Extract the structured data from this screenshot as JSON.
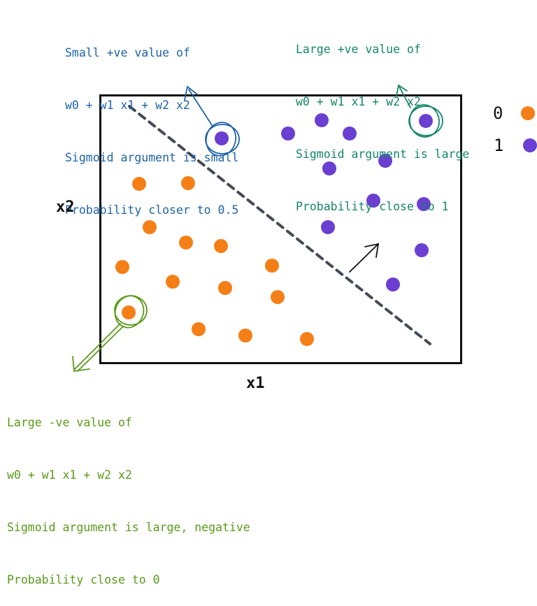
{
  "colors": {
    "class0": "#f57f17",
    "class1": "#6a3fd1",
    "blue_note": "#1e63a6",
    "teal_note": "#16866a",
    "green_note": "#5a9a1a",
    "frame": "#111111",
    "boundary": "#454b54"
  },
  "axes": {
    "x_label": "x1",
    "y_label": "x2"
  },
  "legend": [
    {
      "label": "0",
      "class": "class0"
    },
    {
      "label": "1",
      "class": "class1"
    }
  ],
  "notes": {
    "top_left": {
      "lines": [
        "Small +ve value of",
        "w0 + w1 x1 + w2 x2",
        "Sigmoid argument is small",
        "Probability closer to 0.5"
      ]
    },
    "top_right": {
      "lines": [
        "Large +ve value of",
        "w0 + w1 x1 + w2 x2",
        "Sigmoid argument is large",
        "Probability close to 1"
      ]
    },
    "bottom_left": {
      "lines": [
        "Large -ve value of",
        "w0 + w1 x1 + w2 x2",
        "Sigmoid argument is large, negative",
        "Probability close to 0"
      ]
    }
  }
}
